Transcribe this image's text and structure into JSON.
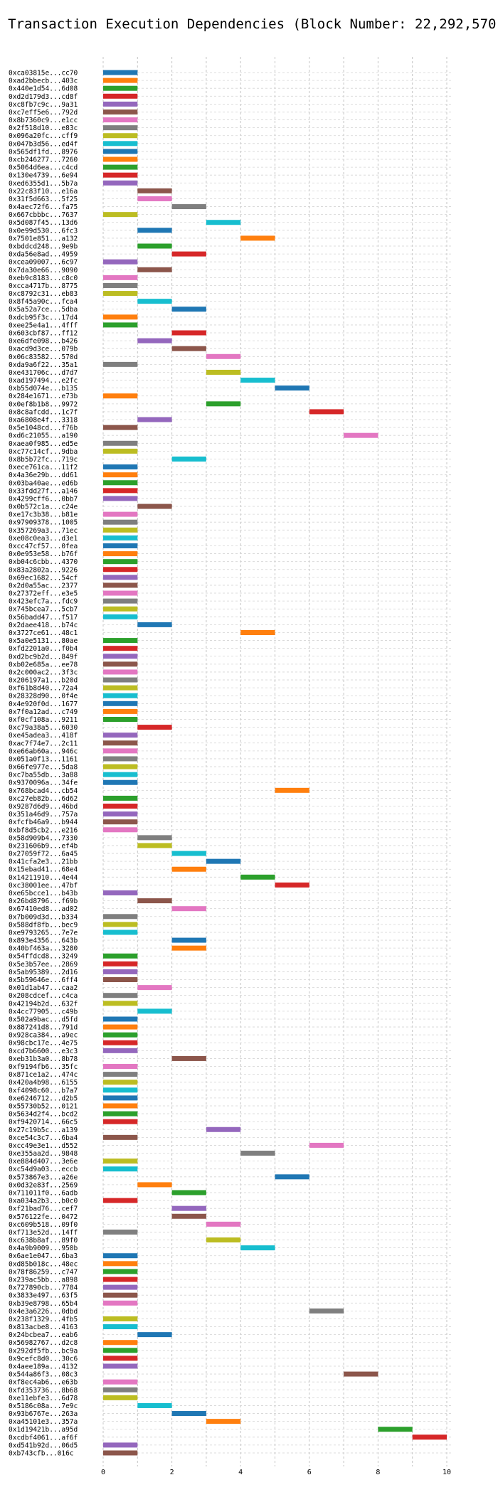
{
  "chart_data": {
    "type": "bar",
    "orientation": "horizontal-gantt",
    "title": "Transaction Execution Dependencies (Block Number: 22,292,570)",
    "xlabel": "",
    "ylabel": "",
    "xlim": [
      0,
      10
    ],
    "xticks": [
      "0",
      "2",
      "4",
      "6",
      "8",
      "10"
    ],
    "grid": true,
    "legend": "none",
    "palette": [
      "#1f77b4",
      "#ff7f0e",
      "#2ca02c",
      "#d62728",
      "#9467bd",
      "#8c564b",
      "#e377c2",
      "#7f7f7f",
      "#bcbd22",
      "#17becf"
    ],
    "rows": [
      {
        "label": "0xca03815e...cc70",
        "start": 0,
        "end": 1
      },
      {
        "label": "0xad2bbecb...403c",
        "start": 0,
        "end": 1
      },
      {
        "label": "0x440e1d54...6d08",
        "start": 0,
        "end": 1
      },
      {
        "label": "0xd2d179d3...cd8f",
        "start": 0,
        "end": 1
      },
      {
        "label": "0xc8fb7c9c...9a31",
        "start": 0,
        "end": 1
      },
      {
        "label": "0xc7eff5e6...792d",
        "start": 0,
        "end": 1
      },
      {
        "label": "0x8b7360c9...e1cc",
        "start": 0,
        "end": 1
      },
      {
        "label": "0x2f518d10...e83c",
        "start": 0,
        "end": 1
      },
      {
        "label": "0x096a20fc...cff9",
        "start": 0,
        "end": 1
      },
      {
        "label": "0x047b3d56...ed4f",
        "start": 0,
        "end": 1
      },
      {
        "label": "0x565df1fd...8976",
        "start": 0,
        "end": 1
      },
      {
        "label": "0xcb246277...7260",
        "start": 0,
        "end": 1
      },
      {
        "label": "0x5064d6ea...c4cd",
        "start": 0,
        "end": 1
      },
      {
        "label": "0x130e4739...6e94",
        "start": 0,
        "end": 1
      },
      {
        "label": "0xed6355d1...5b7a",
        "start": 0,
        "end": 1
      },
      {
        "label": "0x22c83f10...e16a",
        "start": 1,
        "end": 2
      },
      {
        "label": "0x31f5d663...5f25",
        "start": 1,
        "end": 2
      },
      {
        "label": "0x4aec72f6...fa75",
        "start": 2,
        "end": 3
      },
      {
        "label": "0x667cbbbc...7637",
        "start": 0,
        "end": 1
      },
      {
        "label": "0x5d087f45...13d6",
        "start": 3,
        "end": 4
      },
      {
        "label": "0x0e99d530...6fc3",
        "start": 1,
        "end": 2
      },
      {
        "label": "0x7501e851...a132",
        "start": 4,
        "end": 5
      },
      {
        "label": "0xbddcd248...9e9b",
        "start": 1,
        "end": 2
      },
      {
        "label": "0xda56e8ad...4959",
        "start": 2,
        "end": 3
      },
      {
        "label": "0xcea09007...6c97",
        "start": 0,
        "end": 1
      },
      {
        "label": "0x7da30e66...9090",
        "start": 1,
        "end": 2
      },
      {
        "label": "0xeb9c8183...c8c0",
        "start": 0,
        "end": 1
      },
      {
        "label": "0xcca4717b...8775",
        "start": 0,
        "end": 1
      },
      {
        "label": "0xc8792c31...eb83",
        "start": 0,
        "end": 1
      },
      {
        "label": "0x8f45a90c...fca4",
        "start": 1,
        "end": 2
      },
      {
        "label": "0x5a52a7ce...5dba",
        "start": 2,
        "end": 3
      },
      {
        "label": "0xdcb95f3c...17d4",
        "start": 0,
        "end": 1
      },
      {
        "label": "0xee25e4a1...4fff",
        "start": 0,
        "end": 1
      },
      {
        "label": "0x603cbf87...ff12",
        "start": 2,
        "end": 3
      },
      {
        "label": "0xe6dfe098...b426",
        "start": 1,
        "end": 2
      },
      {
        "label": "0xacd9d3ce...079b",
        "start": 2,
        "end": 3
      },
      {
        "label": "0x06c83582...570d",
        "start": 3,
        "end": 4
      },
      {
        "label": "0xda9a6f22...35a1",
        "start": 0,
        "end": 1
      },
      {
        "label": "0xe431706c...d7d7",
        "start": 3,
        "end": 4
      },
      {
        "label": "0xad197494...e2fc",
        "start": 4,
        "end": 5
      },
      {
        "label": "0xb55d074e...b135",
        "start": 5,
        "end": 6
      },
      {
        "label": "0x284e1671...e73b",
        "start": 0,
        "end": 1
      },
      {
        "label": "0x0ef8b1b8...9972",
        "start": 3,
        "end": 4
      },
      {
        "label": "0x8c8afcdd...1c7f",
        "start": 6,
        "end": 7
      },
      {
        "label": "0xa6808e4f...3318",
        "start": 1,
        "end": 2
      },
      {
        "label": "0x5e1048cd...f76b",
        "start": 0,
        "end": 1
      },
      {
        "label": "0xd6c21055...a190",
        "start": 7,
        "end": 8
      },
      {
        "label": "0xaea0f985...ed5e",
        "start": 0,
        "end": 1
      },
      {
        "label": "0xc77c14cf...9dba",
        "start": 0,
        "end": 1
      },
      {
        "label": "0x8b5b72fc...719c",
        "start": 2,
        "end": 3
      },
      {
        "label": "0xece761ca...11f2",
        "start": 0,
        "end": 1
      },
      {
        "label": "0x4a36e29b...dd61",
        "start": 0,
        "end": 1
      },
      {
        "label": "0x03ba40ae...ed6b",
        "start": 0,
        "end": 1
      },
      {
        "label": "0x33fdd27f...a146",
        "start": 0,
        "end": 1
      },
      {
        "label": "0x4299cff6...0bb7",
        "start": 0,
        "end": 1
      },
      {
        "label": "0x0b572c1a...c24e",
        "start": 1,
        "end": 2
      },
      {
        "label": "0xe17c3b38...b81e",
        "start": 0,
        "end": 1
      },
      {
        "label": "0x97909378...1005",
        "start": 0,
        "end": 1
      },
      {
        "label": "0x357269a3...71ec",
        "start": 0,
        "end": 1
      },
      {
        "label": "0xe08c0ea3...d3e1",
        "start": 0,
        "end": 1
      },
      {
        "label": "0xcc47cf57...0fea",
        "start": 0,
        "end": 1
      },
      {
        "label": "0x0e953e58...b76f",
        "start": 0,
        "end": 1
      },
      {
        "label": "0xb04c6cbb...4370",
        "start": 0,
        "end": 1
      },
      {
        "label": "0x83a2802a...9226",
        "start": 0,
        "end": 1
      },
      {
        "label": "0x69ec1682...54cf",
        "start": 0,
        "end": 1
      },
      {
        "label": "0x2d0a55ac...2377",
        "start": 0,
        "end": 1
      },
      {
        "label": "0x27372eff...e3e5",
        "start": 0,
        "end": 1
      },
      {
        "label": "0x423efc7a...fdc9",
        "start": 0,
        "end": 1
      },
      {
        "label": "0x745bcea7...5cb7",
        "start": 0,
        "end": 1
      },
      {
        "label": "0x56badd47...f517",
        "start": 0,
        "end": 1
      },
      {
        "label": "0x2daee418...b74c",
        "start": 1,
        "end": 2
      },
      {
        "label": "0x3727ce61...48c1",
        "start": 4,
        "end": 5
      },
      {
        "label": "0x5a0e5131...80ae",
        "start": 0,
        "end": 1
      },
      {
        "label": "0xfd2201a0...f0b4",
        "start": 0,
        "end": 1
      },
      {
        "label": "0xd2bc9b2d...849f",
        "start": 0,
        "end": 1
      },
      {
        "label": "0xb02e685a...ee78",
        "start": 0,
        "end": 1
      },
      {
        "label": "0x2c000ac2...3f3c",
        "start": 0,
        "end": 1
      },
      {
        "label": "0x206197a1...b20d",
        "start": 0,
        "end": 1
      },
      {
        "label": "0xf61b8d40...72a4",
        "start": 0,
        "end": 1
      },
      {
        "label": "0x28328d90...0f4e",
        "start": 0,
        "end": 1
      },
      {
        "label": "0x4e920f0d...1677",
        "start": 0,
        "end": 1
      },
      {
        "label": "0x7f0a12ad...c749",
        "start": 0,
        "end": 1
      },
      {
        "label": "0xf0cf108a...9211",
        "start": 0,
        "end": 1
      },
      {
        "label": "0xc79a38a5...6030",
        "start": 1,
        "end": 2
      },
      {
        "label": "0xe45adea3...418f",
        "start": 0,
        "end": 1
      },
      {
        "label": "0xac7f74e7...2c11",
        "start": 0,
        "end": 1
      },
      {
        "label": "0xe66ab60a...946c",
        "start": 0,
        "end": 1
      },
      {
        "label": "0x051a0f13...1161",
        "start": 0,
        "end": 1
      },
      {
        "label": "0x66fe977e...5da8",
        "start": 0,
        "end": 1
      },
      {
        "label": "0xc7ba55db...3a88",
        "start": 0,
        "end": 1
      },
      {
        "label": "0x9370096a...34fe",
        "start": 0,
        "end": 1
      },
      {
        "label": "0x768bcad4...cb54",
        "start": 5,
        "end": 6
      },
      {
        "label": "0xc27eb82b...6d62",
        "start": 0,
        "end": 1
      },
      {
        "label": "0x9287d6d9...46bd",
        "start": 0,
        "end": 1
      },
      {
        "label": "0x351a46d9...757a",
        "start": 0,
        "end": 1
      },
      {
        "label": "0xfcfb46a9...b944",
        "start": 0,
        "end": 1
      },
      {
        "label": "0xbf8d5cb2...e216",
        "start": 0,
        "end": 1
      },
      {
        "label": "0x58d909b4...7330",
        "start": 1,
        "end": 2
      },
      {
        "label": "0x231606b9...ef4b",
        "start": 1,
        "end": 2
      },
      {
        "label": "0x27059f72...6a45",
        "start": 2,
        "end": 3
      },
      {
        "label": "0x41cfa2e3...21bb",
        "start": 3,
        "end": 4
      },
      {
        "label": "0x15ebad41...68e4",
        "start": 2,
        "end": 3
      },
      {
        "label": "0x14211910...4e44",
        "start": 4,
        "end": 5
      },
      {
        "label": "0xc38001ee...47bf",
        "start": 5,
        "end": 6
      },
      {
        "label": "0xe65bcce1...b43b",
        "start": 0,
        "end": 1
      },
      {
        "label": "0x26bd8796...f69b",
        "start": 1,
        "end": 2
      },
      {
        "label": "0x67410ed8...ad02",
        "start": 2,
        "end": 3
      },
      {
        "label": "0x7b009d3d...b334",
        "start": 0,
        "end": 1
      },
      {
        "label": "0x588df8fb...bec9",
        "start": 0,
        "end": 1
      },
      {
        "label": "0xe9793265...7e7e",
        "start": 0,
        "end": 1
      },
      {
        "label": "0x893e4356...643b",
        "start": 2,
        "end": 3
      },
      {
        "label": "0x40bf463a...3280",
        "start": 2,
        "end": 3
      },
      {
        "label": "0x54ffdcd8...3249",
        "start": 0,
        "end": 1
      },
      {
        "label": "0x5e3b57ee...2869",
        "start": 0,
        "end": 1
      },
      {
        "label": "0x5ab95389...2d16",
        "start": 0,
        "end": 1
      },
      {
        "label": "0x5b59646e...6ff4",
        "start": 0,
        "end": 1
      },
      {
        "label": "0x01d1ab47...caa2",
        "start": 1,
        "end": 2
      },
      {
        "label": "0x208cdcef...c4ca",
        "start": 0,
        "end": 1
      },
      {
        "label": "0x42194b2d...632f",
        "start": 0,
        "end": 1
      },
      {
        "label": "0x4cc77905...c49b",
        "start": 1,
        "end": 2
      },
      {
        "label": "0x502a9bac...d5fd",
        "start": 0,
        "end": 1
      },
      {
        "label": "0x887241d8...791d",
        "start": 0,
        "end": 1
      },
      {
        "label": "0x928ca384...a9ec",
        "start": 0,
        "end": 1
      },
      {
        "label": "0x98cbc17e...4e75",
        "start": 0,
        "end": 1
      },
      {
        "label": "0xcd7b6600...e3c3",
        "start": 0,
        "end": 1
      },
      {
        "label": "0xeb31b3a0...8b78",
        "start": 2,
        "end": 3
      },
      {
        "label": "0xf9194fb6...35fc",
        "start": 0,
        "end": 1
      },
      {
        "label": "0x871ce1a2...474c",
        "start": 0,
        "end": 1
      },
      {
        "label": "0x420a4b98...6155",
        "start": 0,
        "end": 1
      },
      {
        "label": "0xf4098c60...b7a7",
        "start": 0,
        "end": 1
      },
      {
        "label": "0xe6246712...d2b5",
        "start": 0,
        "end": 1
      },
      {
        "label": "0x55730b52...0121",
        "start": 0,
        "end": 1
      },
      {
        "label": "0x5634d2f4...bcd2",
        "start": 0,
        "end": 1
      },
      {
        "label": "0xf9420714...66c5",
        "start": 0,
        "end": 1
      },
      {
        "label": "0x27c19b5c...a139",
        "start": 3,
        "end": 4
      },
      {
        "label": "0xce54c3c7...6ba4",
        "start": 0,
        "end": 1
      },
      {
        "label": "0xcc49e3e1...d552",
        "start": 6,
        "end": 7
      },
      {
        "label": "0xe355aa2d...9848",
        "start": 4,
        "end": 5
      },
      {
        "label": "0xe884d407...3e6e",
        "start": 0,
        "end": 1
      },
      {
        "label": "0xc54d9a03...eccb",
        "start": 0,
        "end": 1
      },
      {
        "label": "0x573867e3...a26e",
        "start": 5,
        "end": 6
      },
      {
        "label": "0x0d32e83f...2569",
        "start": 1,
        "end": 2
      },
      {
        "label": "0x711011f0...6adb",
        "start": 2,
        "end": 3
      },
      {
        "label": "0xa034a2b3...b0c0",
        "start": 0,
        "end": 1
      },
      {
        "label": "0xf21bad76...cef7",
        "start": 2,
        "end": 3
      },
      {
        "label": "0x576122fe...0472",
        "start": 2,
        "end": 3
      },
      {
        "label": "0xc609b518...09f0",
        "start": 3,
        "end": 4
      },
      {
        "label": "0xf713e52d...14ff",
        "start": 0,
        "end": 1
      },
      {
        "label": "0xc638b8af...89f0",
        "start": 3,
        "end": 4
      },
      {
        "label": "0x4a9b9009...950b",
        "start": 4,
        "end": 5
      },
      {
        "label": "0x6ae1e047...6ba3",
        "start": 0,
        "end": 1
      },
      {
        "label": "0xd85b018c...48ec",
        "start": 0,
        "end": 1
      },
      {
        "label": "0x78f86259...c747",
        "start": 0,
        "end": 1
      },
      {
        "label": "0x239ac5bb...a898",
        "start": 0,
        "end": 1
      },
      {
        "label": "0x727890cb...7784",
        "start": 0,
        "end": 1
      },
      {
        "label": "0x3833e497...63f5",
        "start": 0,
        "end": 1
      },
      {
        "label": "0xb39e8798...65b4",
        "start": 0,
        "end": 1
      },
      {
        "label": "0x4e3a6226...0dbd",
        "start": 6,
        "end": 7
      },
      {
        "label": "0x238f1329...4fb5",
        "start": 0,
        "end": 1
      },
      {
        "label": "0x813acbe8...4163",
        "start": 0,
        "end": 1
      },
      {
        "label": "0x24bcbea7...eab6",
        "start": 1,
        "end": 2
      },
      {
        "label": "0x56982767...d2c8",
        "start": 0,
        "end": 1
      },
      {
        "label": "0x292df5fb...bc9a",
        "start": 0,
        "end": 1
      },
      {
        "label": "0x9cefc8d0...30c6",
        "start": 0,
        "end": 1
      },
      {
        "label": "0x4aee189a...4132",
        "start": 0,
        "end": 1
      },
      {
        "label": "0x544a86f3...08c3",
        "start": 7,
        "end": 8
      },
      {
        "label": "0xf8ec4ab6...e63b",
        "start": 0,
        "end": 1
      },
      {
        "label": "0xfd353736...8b68",
        "start": 0,
        "end": 1
      },
      {
        "label": "0xe11ebfe3...6d78",
        "start": 0,
        "end": 1
      },
      {
        "label": "0x5186c08a...7e9c",
        "start": 1,
        "end": 2
      },
      {
        "label": "0x93b6767e...263a",
        "start": 2,
        "end": 3
      },
      {
        "label": "0xa45101e3...357a",
        "start": 3,
        "end": 4
      },
      {
        "label": "0x1d19421b...a95d",
        "start": 8,
        "end": 9
      },
      {
        "label": "0xcdbf4061...af6f",
        "start": 9,
        "end": 10
      },
      {
        "label": "0xd541b92d...06d5",
        "start": 0,
        "end": 1
      },
      {
        "label": "0xb743cfb...016c",
        "start": 0,
        "end": 1
      }
    ]
  }
}
